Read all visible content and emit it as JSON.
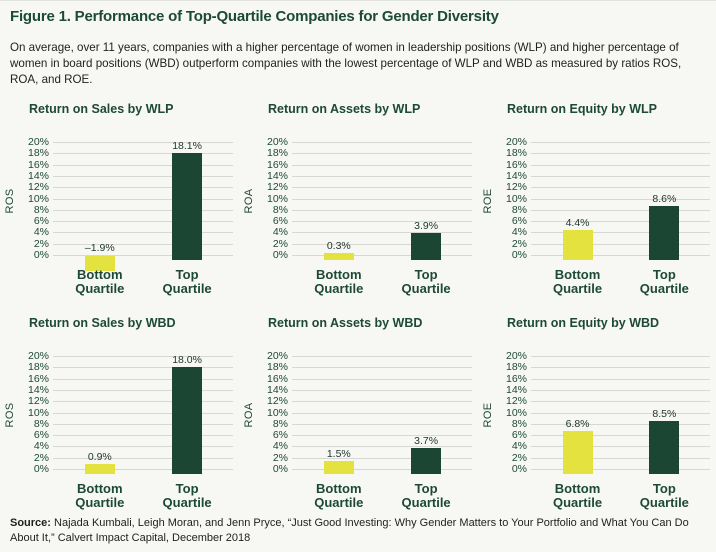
{
  "figure": {
    "title": "Figure 1. Performance of Top-Quartile Companies for Gender Diversity",
    "description": "On average, over 11 years, companies with a higher percentage of women in leadership positions (WLP) and higher percentage of women in board positions (WBD) outperform companies with the lowest percentage of WLP and WBD as measured by ratios ROS, ROA, and ROE."
  },
  "source": {
    "label": "Source:",
    "text": " Najada Kumbali, Leigh Moran, and Jenn Pryce, “Just Good Investing: Why Gender Matters to Your Portfolio and What You Can Do About It,” Calvert Impact Capital, December 2018"
  },
  "colors": {
    "dark_green": "#1c4634",
    "yellow": "#e3e23f",
    "gridline": "#d8d8d2",
    "background": "#f7f7f4"
  },
  "chart_data": [
    {
      "type": "bar",
      "title": "Return on Sales by WLP",
      "ylabel": "ROS",
      "categories": [
        "Bottom Quartile",
        "Top Quartile"
      ],
      "values": [
        -1.9,
        18.1
      ],
      "value_labels": [
        "–1.9%",
        "18.1%"
      ],
      "bar_colors": [
        "#e3e23f",
        "#1c4634"
      ],
      "ylim": [
        0,
        20
      ],
      "ytick_step": 2,
      "ytick_suffix": "%",
      "grid": true,
      "legend": "none"
    },
    {
      "type": "bar",
      "title": "Return on Assets by WLP",
      "ylabel": "ROA",
      "categories": [
        "Bottom Quartile",
        "Top Quartile"
      ],
      "values": [
        0.3,
        3.9
      ],
      "value_labels": [
        "0.3%",
        "3.9%"
      ],
      "bar_colors": [
        "#e3e23f",
        "#1c4634"
      ],
      "ylim": [
        0,
        20
      ],
      "ytick_step": 2,
      "ytick_suffix": "%",
      "grid": true,
      "legend": "none"
    },
    {
      "type": "bar",
      "title": "Return on Equity by WLP",
      "ylabel": "ROE",
      "categories": [
        "Bottom Quartile",
        "Top Quartile"
      ],
      "values": [
        4.4,
        8.6
      ],
      "value_labels": [
        "4.4%",
        "8.6%"
      ],
      "bar_colors": [
        "#e3e23f",
        "#1c4634"
      ],
      "ylim": [
        0,
        20
      ],
      "ytick_step": 2,
      "ytick_suffix": "%",
      "grid": true,
      "legend": "none"
    },
    {
      "type": "bar",
      "title": "Return on Sales by WBD",
      "ylabel": "ROS",
      "categories": [
        "Bottom Quartile",
        "Top Quartile"
      ],
      "values": [
        0.9,
        18.0
      ],
      "value_labels": [
        "0.9%",
        "18.0%"
      ],
      "bar_colors": [
        "#e3e23f",
        "#1c4634"
      ],
      "ylim": [
        0,
        20
      ],
      "ytick_step": 2,
      "ytick_suffix": "%",
      "grid": true,
      "legend": "none"
    },
    {
      "type": "bar",
      "title": "Return on Assets by WBD",
      "ylabel": "ROA",
      "categories": [
        "Bottom Quartile",
        "Top Quartile"
      ],
      "values": [
        1.5,
        3.7
      ],
      "value_labels": [
        "1.5%",
        "3.7%"
      ],
      "bar_colors": [
        "#e3e23f",
        "#1c4634"
      ],
      "ylim": [
        0,
        20
      ],
      "ytick_step": 2,
      "ytick_suffix": "%",
      "grid": true,
      "legend": "none"
    },
    {
      "type": "bar",
      "title": "Return on Equity by WBD",
      "ylabel": "ROE",
      "categories": [
        "Bottom Quartile",
        "Top Quartile"
      ],
      "values": [
        6.8,
        8.5
      ],
      "value_labels": [
        "6.8%",
        "8.5%"
      ],
      "bar_colors": [
        "#e3e23f",
        "#1c4634"
      ],
      "ylim": [
        0,
        20
      ],
      "ytick_step": 2,
      "ytick_suffix": "%",
      "grid": true,
      "legend": "none"
    }
  ]
}
